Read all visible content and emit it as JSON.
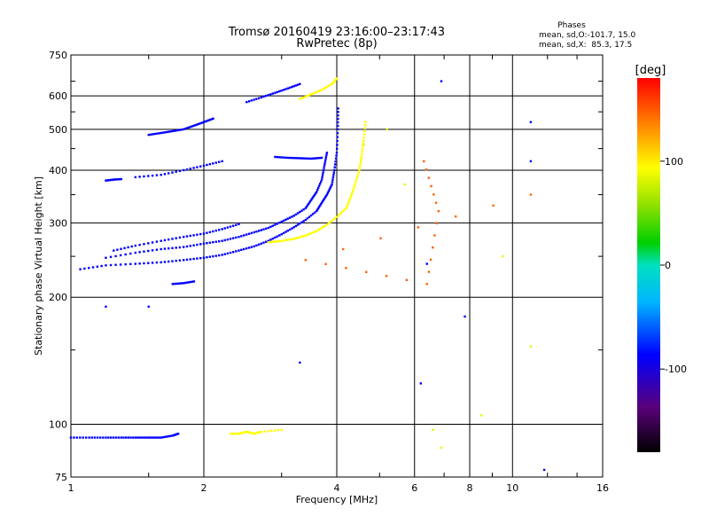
{
  "chart_data": {
    "type": "scatter",
    "title": "Tromsø 20160419 23:16:00–23:17:43",
    "subtitle": "RwPretec (8p)",
    "xlabel": "Frequency [MHz]",
    "ylabel": "Stationary phase Virtual Height [km]",
    "x_scale": "log",
    "y_scale": "log",
    "xlim": [
      1,
      16
    ],
    "ylim": [
      75,
      750
    ],
    "x_ticks": [
      1,
      2,
      4,
      6,
      8,
      10,
      16
    ],
    "x_tick_labels": [
      "1",
      "2",
      "4",
      "6",
      "8",
      "10",
      "16"
    ],
    "y_ticks": [
      75,
      100,
      200,
      300,
      400,
      500,
      600,
      750
    ],
    "y_tick_labels": [
      "75",
      "100",
      "200",
      "300",
      "400",
      "500",
      "600",
      "750"
    ],
    "grid": true,
    "phases_box": {
      "heading": "Phases",
      "line1": "mean, sd,O:-101.7, 15.0",
      "line2": "mean, sd,X:  85.3, 17.5"
    },
    "colorbar": {
      "label": "[deg]",
      "range": [
        -180,
        180
      ],
      "ticks": [
        100,
        0,
        -100
      ],
      "tick_labels": [
        "100",
        "0",
        "-100"
      ]
    },
    "series": [
      {
        "trace": "E-layer",
        "phase_deg": -100,
        "points": [
          [
            1.0,
            93
          ],
          [
            1.1,
            93
          ],
          [
            1.2,
            93
          ],
          [
            1.3,
            93
          ],
          [
            1.4,
            93
          ],
          [
            1.5,
            93
          ],
          [
            1.6,
            93
          ],
          [
            1.7,
            94
          ],
          [
            1.75,
            95
          ]
        ]
      },
      {
        "trace": "Es-yellow",
        "phase_deg": 100,
        "points": [
          [
            2.3,
            95
          ],
          [
            2.4,
            95
          ],
          [
            2.5,
            96
          ],
          [
            2.6,
            95
          ],
          [
            2.7,
            96
          ],
          [
            3.0,
            97
          ]
        ]
      },
      {
        "trace": "O-lower",
        "phase_deg": -100,
        "points": [
          [
            1.05,
            233
          ],
          [
            1.2,
            238
          ],
          [
            1.4,
            240
          ],
          [
            1.6,
            242
          ],
          [
            1.8,
            245
          ],
          [
            2.0,
            248
          ],
          [
            2.2,
            252
          ],
          [
            2.4,
            258
          ],
          [
            2.6,
            264
          ],
          [
            2.8,
            272
          ],
          [
            3.0,
            282
          ],
          [
            3.2,
            293
          ],
          [
            3.4,
            305
          ],
          [
            3.6,
            320
          ],
          [
            3.7,
            335
          ],
          [
            3.8,
            350
          ],
          [
            3.9,
            370
          ],
          [
            3.95,
            400
          ],
          [
            4.0,
            440
          ],
          [
            4.02,
            500
          ],
          [
            4.03,
            560
          ]
        ]
      },
      {
        "trace": "O-upper",
        "phase_deg": -100,
        "points": [
          [
            1.2,
            248
          ],
          [
            1.4,
            255
          ],
          [
            1.6,
            260
          ],
          [
            1.8,
            263
          ],
          [
            2.0,
            268
          ],
          [
            2.2,
            272
          ],
          [
            2.4,
            278
          ],
          [
            2.6,
            285
          ],
          [
            2.8,
            292
          ],
          [
            3.0,
            302
          ],
          [
            3.2,
            312
          ],
          [
            3.4,
            325
          ],
          [
            3.5,
            340
          ],
          [
            3.6,
            355
          ],
          [
            3.7,
            380
          ],
          [
            3.75,
            410
          ],
          [
            3.8,
            440
          ]
        ]
      },
      {
        "trace": "O-top",
        "phase_deg": -100,
        "points": [
          [
            1.25,
            258
          ],
          [
            1.4,
            265
          ],
          [
            1.6,
            272
          ],
          [
            1.8,
            278
          ],
          [
            2.0,
            283
          ],
          [
            2.2,
            290
          ],
          [
            2.4,
            298
          ]
        ]
      },
      {
        "trace": "X-mode",
        "phase_deg": 100,
        "points": [
          [
            2.8,
            270
          ],
          [
            3.0,
            272
          ],
          [
            3.2,
            275
          ],
          [
            3.4,
            280
          ],
          [
            3.6,
            287
          ],
          [
            3.8,
            297
          ],
          [
            4.0,
            310
          ],
          [
            4.2,
            325
          ],
          [
            4.3,
            345
          ],
          [
            4.4,
            370
          ],
          [
            4.5,
            400
          ],
          [
            4.55,
            430
          ],
          [
            4.6,
            470
          ],
          [
            4.65,
            520
          ]
        ]
      },
      {
        "trace": "O-spread-500",
        "phase_deg": -100,
        "points": [
          [
            1.5,
            485
          ],
          [
            1.6,
            490
          ],
          [
            1.7,
            495
          ],
          [
            1.8,
            500
          ],
          [
            1.9,
            510
          ],
          [
            2.0,
            520
          ],
          [
            2.1,
            530
          ]
        ]
      },
      {
        "trace": "O-spread-600",
        "phase_deg": -100,
        "points": [
          [
            2.5,
            580
          ],
          [
            2.7,
            595
          ],
          [
            2.9,
            610
          ],
          [
            3.1,
            625
          ],
          [
            3.3,
            640
          ]
        ]
      },
      {
        "trace": "X-spread-600",
        "phase_deg": 100,
        "points": [
          [
            3.3,
            590
          ],
          [
            3.5,
            605
          ],
          [
            3.7,
            620
          ],
          [
            3.9,
            640
          ],
          [
            4.0,
            660
          ]
        ]
      },
      {
        "trace": "F2-400",
        "phase_deg": -100,
        "points": [
          [
            1.4,
            385
          ],
          [
            1.6,
            390
          ],
          [
            1.8,
            400
          ],
          [
            2.0,
            410
          ],
          [
            2.2,
            420
          ]
        ]
      },
      {
        "trace": "F2-430",
        "phase_deg": -100,
        "points": [
          [
            2.9,
            430
          ],
          [
            3.1,
            428
          ],
          [
            3.3,
            427
          ],
          [
            3.5,
            426
          ],
          [
            3.7,
            428
          ]
        ]
      },
      {
        "trace": "F-380",
        "phase_deg": -100,
        "points": [
          [
            1.2,
            378
          ],
          [
            1.25,
            380
          ],
          [
            1.3,
            381
          ]
        ]
      },
      {
        "trace": "F-215",
        "phase_deg": -100,
        "points": [
          [
            1.7,
            215
          ],
          [
            1.8,
            216
          ],
          [
            1.9,
            218
          ]
        ]
      },
      {
        "trace": "X-scatter-red",
        "phase_deg": 150,
        "points": [
          [
            6.3,
            420
          ],
          [
            6.8,
            320
          ],
          [
            6.4,
            215
          ],
          [
            3.4,
            245
          ],
          [
            11.0,
            350
          ]
        ]
      },
      {
        "trace": "scatter-blue",
        "phase_deg": -100,
        "points": [
          [
            6.9,
            650
          ],
          [
            11.0,
            520
          ],
          [
            11.0,
            420
          ],
          [
            6.4,
            240
          ],
          [
            7.8,
            180
          ],
          [
            6.2,
            125
          ],
          [
            11.8,
            78
          ],
          [
            3.3,
            140
          ],
          [
            1.2,
            190
          ],
          [
            1.5,
            190
          ]
        ]
      },
      {
        "trace": "scatter-yellow",
        "phase_deg": 90,
        "points": [
          [
            4.6,
            460
          ],
          [
            5.2,
            500
          ],
          [
            5.7,
            370
          ],
          [
            6.6,
            97
          ],
          [
            6.9,
            88
          ],
          [
            8.5,
            105
          ],
          [
            9.5,
            250
          ],
          [
            11.0,
            153
          ]
        ]
      }
    ]
  }
}
